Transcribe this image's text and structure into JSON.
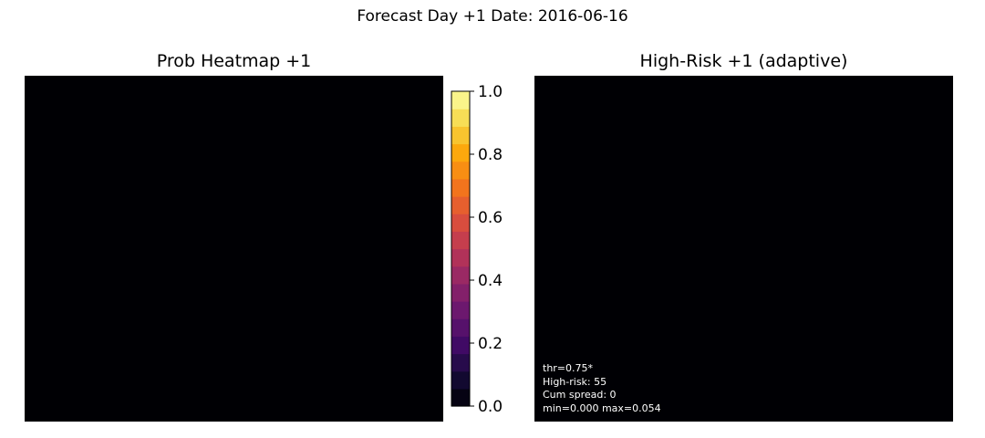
{
  "figure": {
    "suptitle": "Forecast Day +1  Date: 2016-06-16"
  },
  "chart_data": [
    {
      "type": "heatmap",
      "title": "Prob Heatmap +1",
      "colormap": "inferno",
      "value_range": [
        0.0,
        1.0
      ],
      "observed_appearance": "uniformly dark (all near 0)",
      "colorbar": {
        "ticks": [
          "0.0",
          "0.2",
          "0.4",
          "0.6",
          "0.8",
          "1.0"
        ],
        "levels": 18,
        "min": 0.0,
        "max": 1.0
      },
      "axes_visible": false
    },
    {
      "type": "heatmap",
      "title": "High-Risk +1 (adaptive)",
      "observed_appearance": "uniformly dark",
      "axes_visible": false,
      "annotations": [
        "thr=0.75*",
        "High-risk: 55",
        "Cum spread: 0",
        "min=0.000 max=0.054"
      ]
    }
  ],
  "colors": {
    "background": "#ffffff",
    "plot_fill": "#000004",
    "annotation_text": "#ffffff"
  }
}
